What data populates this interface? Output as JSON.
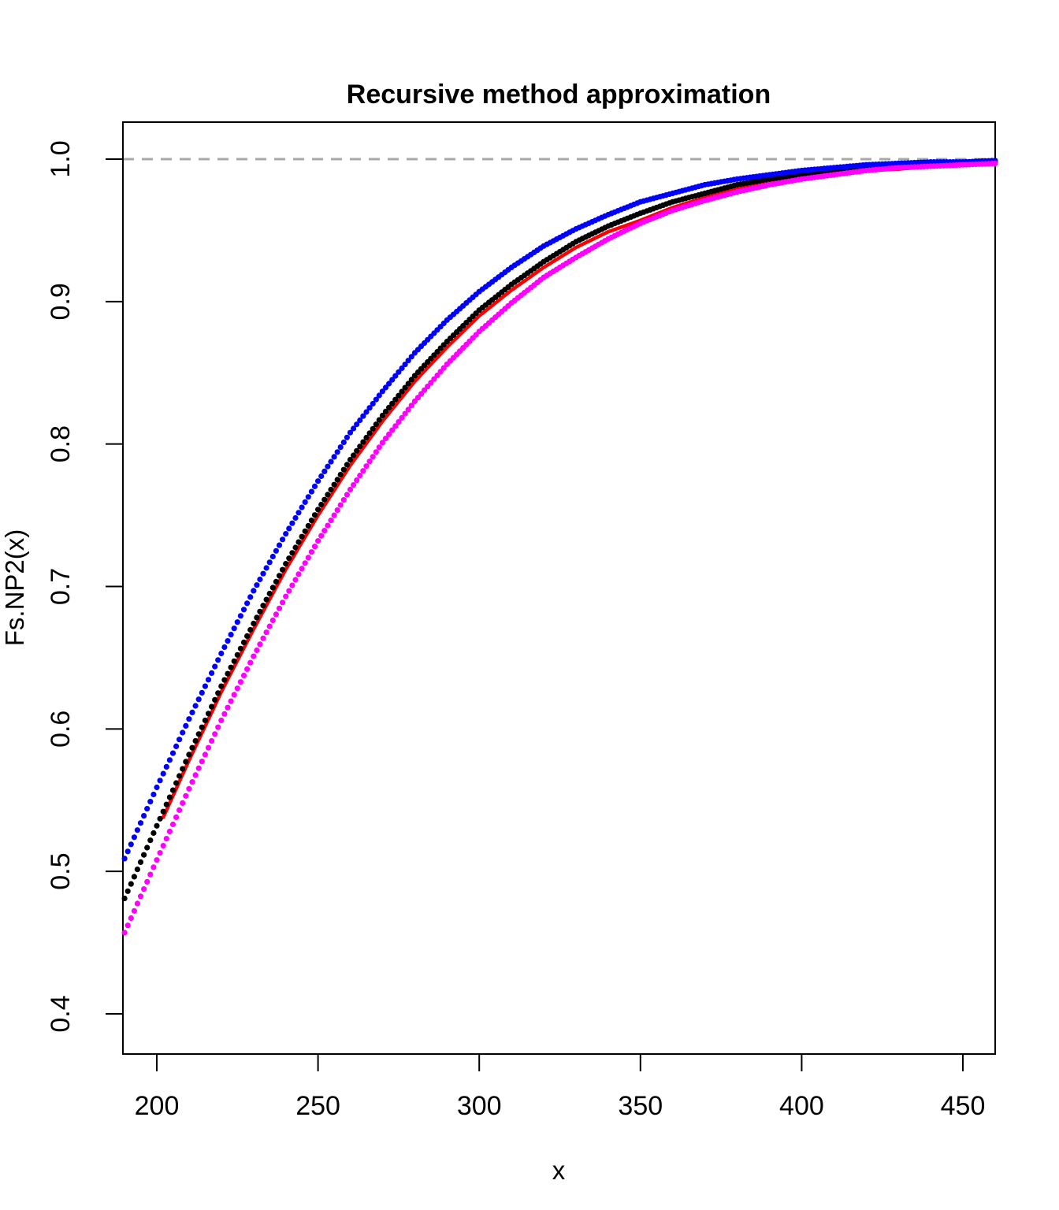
{
  "chart_data": {
    "type": "line",
    "title": "Recursive method approximation",
    "xlabel": "x",
    "ylabel": "Fs.NP2(x)",
    "xlim": [
      189.5,
      460
    ],
    "ylim": [
      0.372,
      1.025
    ],
    "grid": false,
    "legend": null,
    "x_ticks": [
      {
        "value": 200,
        "label": "200"
      },
      {
        "value": 250,
        "label": "250"
      },
      {
        "value": 300,
        "label": "300"
      },
      {
        "value": 350,
        "label": "350"
      },
      {
        "value": 400,
        "label": "400"
      },
      {
        "value": 450,
        "label": "450"
      }
    ],
    "y_ticks": [
      {
        "value": 0.4,
        "label": "0.4"
      },
      {
        "value": 0.5,
        "label": "0.5"
      },
      {
        "value": 0.6,
        "label": "0.6"
      },
      {
        "value": 0.7,
        "label": "0.7"
      },
      {
        "value": 0.8,
        "label": "0.8"
      },
      {
        "value": 0.9,
        "label": "0.9"
      },
      {
        "value": 1.0,
        "label": "1.0"
      }
    ],
    "reference_line": {
      "y": 1.0,
      "color": "#A9A9A9",
      "style": "dashed"
    },
    "series": [
      {
        "name": "red solid curve",
        "color": "#FF0000",
        "style": "solid",
        "x": [
          202,
          210,
          220,
          230,
          240,
          250,
          260,
          270,
          280,
          290,
          300,
          310,
          320,
          330,
          340,
          350,
          360,
          370,
          380,
          390,
          400,
          410,
          420,
          430,
          440,
          450,
          460
        ],
        "values": [
          0.538,
          0.578,
          0.626,
          0.67,
          0.712,
          0.75,
          0.785,
          0.816,
          0.844,
          0.868,
          0.89,
          0.908,
          0.924,
          0.938,
          0.949,
          0.957,
          0.966,
          0.973,
          0.979,
          0.983,
          0.987,
          0.99,
          0.992,
          0.993,
          0.995,
          0.996,
          0.997
        ]
      },
      {
        "name": "black dotted curve",
        "color": "#000000",
        "style": "dotted",
        "x": [
          190,
          200,
          210,
          220,
          230,
          240,
          250,
          260,
          270,
          280,
          290,
          300,
          310,
          320,
          330,
          340,
          350,
          360,
          370,
          380,
          390,
          400,
          410,
          420,
          430,
          440,
          450,
          460
        ],
        "values": [
          0.481,
          0.532,
          0.582,
          0.63,
          0.674,
          0.716,
          0.754,
          0.789,
          0.82,
          0.848,
          0.872,
          0.894,
          0.912,
          0.928,
          0.942,
          0.953,
          0.962,
          0.97,
          0.976,
          0.982,
          0.986,
          0.989,
          0.992,
          0.994,
          0.995,
          0.996,
          0.997,
          0.998
        ]
      },
      {
        "name": "blue dotted curve",
        "color": "#0000FF",
        "style": "dotted",
        "x": [
          190,
          200,
          210,
          220,
          230,
          240,
          250,
          260,
          270,
          280,
          290,
          300,
          310,
          320,
          330,
          340,
          350,
          360,
          370,
          380,
          390,
          400,
          410,
          420,
          430,
          440,
          450,
          460
        ],
        "values": [
          0.509,
          0.559,
          0.607,
          0.653,
          0.697,
          0.737,
          0.774,
          0.808,
          0.837,
          0.864,
          0.887,
          0.907,
          0.924,
          0.939,
          0.951,
          0.961,
          0.97,
          0.976,
          0.982,
          0.986,
          0.989,
          0.992,
          0.994,
          0.996,
          0.997,
          0.998,
          0.998,
          0.999
        ]
      },
      {
        "name": "magenta dotted curve",
        "color": "#FF00FF",
        "style": "dotted",
        "x": [
          190,
          200,
          210,
          220,
          230,
          240,
          250,
          260,
          270,
          280,
          290,
          300,
          310,
          320,
          330,
          340,
          350,
          360,
          370,
          380,
          390,
          400,
          410,
          420,
          430,
          440,
          450,
          460
        ],
        "values": [
          0.457,
          0.508,
          0.558,
          0.606,
          0.651,
          0.693,
          0.732,
          0.768,
          0.801,
          0.83,
          0.856,
          0.879,
          0.899,
          0.917,
          0.931,
          0.944,
          0.955,
          0.964,
          0.971,
          0.977,
          0.982,
          0.986,
          0.989,
          0.992,
          0.994,
          0.995,
          0.996,
          0.997
        ]
      }
    ]
  }
}
